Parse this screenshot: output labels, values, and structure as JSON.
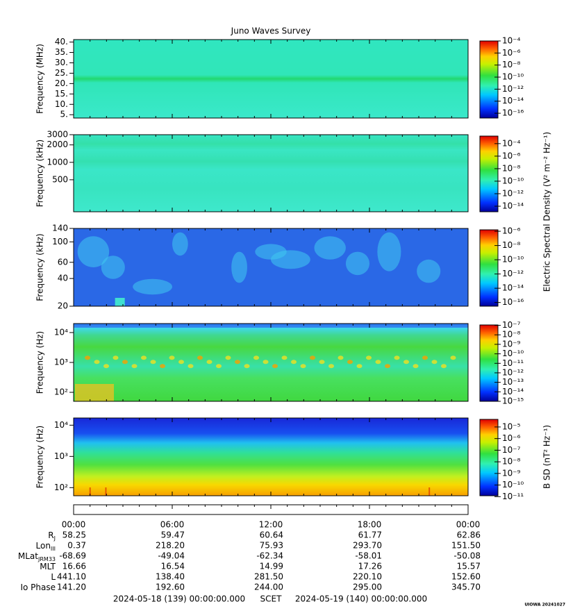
{
  "figure": {
    "title": "Juno Waves Survey"
  },
  "chart_data": [
    {
      "type": "spectrogram",
      "ylabel": "Frequency (MHz)",
      "ylog": false,
      "ylim": [
        3.4,
        41.2
      ],
      "yticks": [
        {
          "value": 5,
          "label": "5."
        },
        {
          "value": 10,
          "label": "10."
        },
        {
          "value": 15,
          "label": "15."
        },
        {
          "value": 20,
          "label": "20."
        },
        {
          "value": 25,
          "label": "25."
        },
        {
          "value": 30,
          "label": "30."
        },
        {
          "value": 35,
          "label": "35."
        },
        {
          "value": 40,
          "label": "40."
        }
      ],
      "clog": true,
      "clim": [
        1.6e-17,
        0.0001
      ],
      "cticks": [
        {
          "value": 0.0001,
          "label": "10⁻⁴"
        },
        {
          "value": 1e-06,
          "label": "10⁻⁶"
        },
        {
          "value": 1e-08,
          "label": "10⁻⁸"
        },
        {
          "value": 1e-10,
          "label": "10⁻¹⁰"
        },
        {
          "value": 1e-12,
          "label": "10⁻¹²"
        },
        {
          "value": 1e-14,
          "label": "10⁻¹⁴"
        },
        {
          "value": 1e-16,
          "label": "10⁻¹⁶"
        }
      ]
    },
    {
      "type": "spectrogram",
      "ylabel": "Frequency (kHz)",
      "ylog": true,
      "ylim": [
        140,
        3000
      ],
      "yticks": [
        500,
        1000,
        2000,
        3000
      ],
      "clog": true,
      "clim": [
        1.3e-15,
        0.0016
      ],
      "cticks": [
        {
          "value": 0.0001,
          "label": "10⁻⁴"
        },
        {
          "value": 1e-06,
          "label": "10⁻⁶"
        },
        {
          "value": 1e-08,
          "label": "10⁻⁸"
        },
        {
          "value": 1e-10,
          "label": "10⁻¹⁰"
        },
        {
          "value": 1e-12,
          "label": "10⁻¹²"
        },
        {
          "value": 1e-14,
          "label": "10⁻¹⁴"
        }
      ],
      "zlabel": "Electric Spectral Density (V² m⁻² Hz⁻¹)"
    },
    {
      "type": "spectrogram",
      "ylabel": "Frequency (kHz)",
      "ylog": true,
      "ylim": [
        20,
        140
      ],
      "yticks": [
        20,
        40,
        60,
        100,
        140
      ],
      "clog": true,
      "clim": [
        3e-17,
        1.6e-06
      ],
      "cticks": [
        {
          "value": 1e-06,
          "label": "10⁻⁶"
        },
        {
          "value": 1e-08,
          "label": "10⁻⁸"
        },
        {
          "value": 1e-10,
          "label": "10⁻¹⁰"
        },
        {
          "value": 1e-12,
          "label": "10⁻¹²"
        },
        {
          "value": 1e-14,
          "label": "10⁻¹⁴"
        },
        {
          "value": 1e-16,
          "label": "10⁻¹⁶"
        }
      ]
    },
    {
      "type": "spectrogram",
      "ylabel": "Frequency (Hz)",
      "ylog": true,
      "ylim": [
        50,
        20000
      ],
      "yticks": [
        {
          "value": 100,
          "label": "10²"
        },
        {
          "value": 1000,
          "label": "10³"
        },
        {
          "value": 10000,
          "label": "10⁴"
        }
      ],
      "clog": true,
      "clim": [
        1e-15,
        1.1e-07
      ],
      "cticks": [
        {
          "value": 1e-07,
          "label": "10⁻⁷"
        },
        {
          "value": 1e-08,
          "label": "10⁻⁸"
        },
        {
          "value": 1e-09,
          "label": "10⁻⁹"
        },
        {
          "value": 1e-10,
          "label": "10⁻¹⁰"
        },
        {
          "value": 1e-11,
          "label": "10⁻¹¹"
        },
        {
          "value": 1e-12,
          "label": "10⁻¹²"
        },
        {
          "value": 1e-13,
          "label": "10⁻¹³"
        },
        {
          "value": 1e-14,
          "label": "10⁻¹⁴"
        },
        {
          "value": 1e-15,
          "label": "10⁻¹⁵"
        }
      ]
    },
    {
      "type": "spectrogram",
      "ylabel": "Frequency (Hz)",
      "ylog": true,
      "ylim": [
        55,
        17000
      ],
      "yticks": [
        {
          "value": 100,
          "label": "10²"
        },
        {
          "value": 1000,
          "label": "10³"
        },
        {
          "value": 10000,
          "label": "10⁴"
        }
      ],
      "clog": true,
      "clim": [
        1.2e-11,
        4.5e-05
      ],
      "cticks": [
        {
          "value": 1e-05,
          "label": "10⁻⁵"
        },
        {
          "value": 1e-06,
          "label": "10⁻⁶"
        },
        {
          "value": 1e-07,
          "label": "10⁻⁷"
        },
        {
          "value": 1e-08,
          "label": "10⁻⁸"
        },
        {
          "value": 1e-09,
          "label": "10⁻⁹"
        },
        {
          "value": 1e-10,
          "label": "10⁻¹⁰"
        },
        {
          "value": 1e-11,
          "label": "10⁻¹¹"
        }
      ],
      "zlabel": "B SD (nT² Hz⁻¹)"
    }
  ],
  "ephemeris": {
    "times": [
      "00:00",
      "06:00",
      "12:00",
      "18:00",
      "00:00"
    ],
    "rows": [
      {
        "label": "R",
        "sub": "J",
        "values": [
          "58.25",
          "59.47",
          "60.64",
          "61.77",
          "62.86"
        ]
      },
      {
        "label": "Lon",
        "sub": "III",
        "values": [
          "0.37",
          "218.20",
          "75.93",
          "293.70",
          "151.50"
        ]
      },
      {
        "label": "MLat",
        "sub": "JRM33",
        "values": [
          "-68.69",
          "-49.04",
          "-62.34",
          "-58.01",
          "-50.08"
        ]
      },
      {
        "label": "MLT",
        "values": [
          "16.66",
          "16.54",
          "14.99",
          "17.26",
          "15.57"
        ]
      },
      {
        "label": "L",
        "values": [
          "441.10",
          "138.40",
          "281.50",
          "220.10",
          "152.60"
        ]
      },
      {
        "label": "Io Phase",
        "values": [
          "141.20",
          "192.60",
          "244.00",
          "295.00",
          "345.70"
        ]
      }
    ]
  },
  "footer": {
    "start": "2024-05-18 (139) 00:00:00.000",
    "center": "SCET",
    "end": "2024-05-19 (140) 00:00:00.000"
  },
  "credit": "UIOWA 20241027"
}
